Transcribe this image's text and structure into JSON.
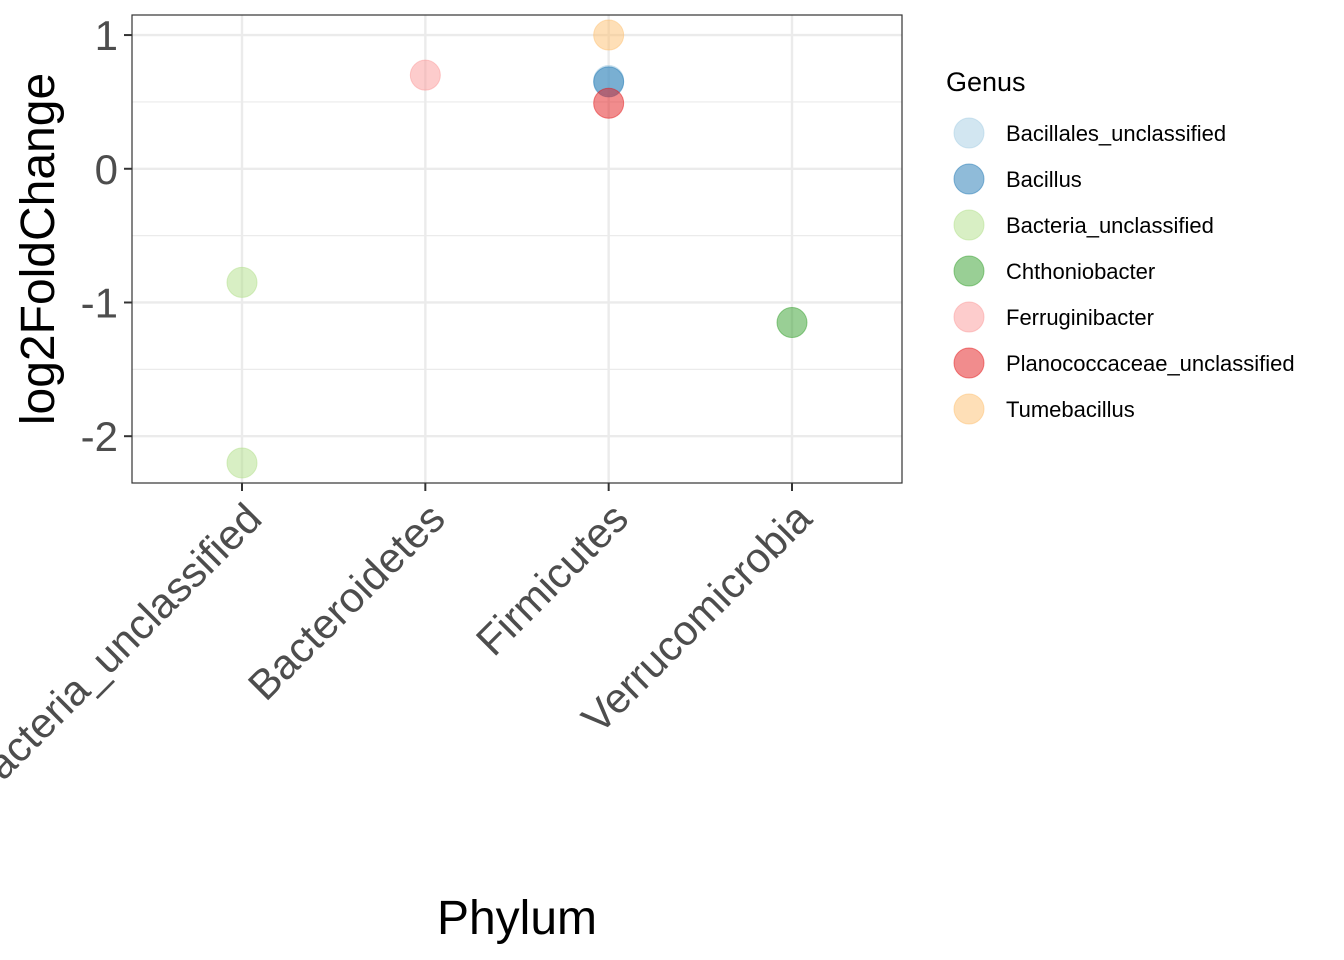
{
  "chart_data": {
    "type": "scatter",
    "xlabel": "Phylum",
    "ylabel": "log2FoldChange",
    "categories": [
      "Bacteria_unclassified",
      "Bacteroidetes",
      "Firmicutes",
      "Verrucomicrobia"
    ],
    "y_ticks": [
      1,
      0,
      -1,
      -2
    ],
    "y_tick_labels": [
      "1",
      "0",
      "-1",
      "-2"
    ],
    "ylim": [
      -2.35,
      1.15
    ],
    "grid": true,
    "legend_position": "right",
    "legend_title": "Genus",
    "series": [
      {
        "name": "Bacillales_unclassified",
        "color": "#A6CEE3",
        "points": [
          {
            "x": "Firmicutes",
            "y": 0.66
          }
        ]
      },
      {
        "name": "Bacillus",
        "color": "#1F78B4",
        "points": [
          {
            "x": "Firmicutes",
            "y": 0.65
          }
        ]
      },
      {
        "name": "Bacteria_unclassified",
        "color": "#B2DF8A",
        "points": [
          {
            "x": "Bacteria_unclassified",
            "y": -0.85
          },
          {
            "x": "Bacteria_unclassified",
            "y": -2.2
          }
        ]
      },
      {
        "name": "Chthoniobacter",
        "color": "#33A02C",
        "points": [
          {
            "x": "Verrucomicrobia",
            "y": -1.15
          }
        ]
      },
      {
        "name": "Ferruginibacter",
        "color": "#FB9A99",
        "points": [
          {
            "x": "Bacteroidetes",
            "y": 0.7
          }
        ]
      },
      {
        "name": "Planococcaceae_unclassified",
        "color": "#E31A1C",
        "points": [
          {
            "x": "Firmicutes",
            "y": 0.49
          }
        ]
      },
      {
        "name": "Tumebacillus",
        "color": "#FDBF6F",
        "points": [
          {
            "x": "Firmicutes",
            "y": 1.0
          }
        ]
      }
    ]
  }
}
